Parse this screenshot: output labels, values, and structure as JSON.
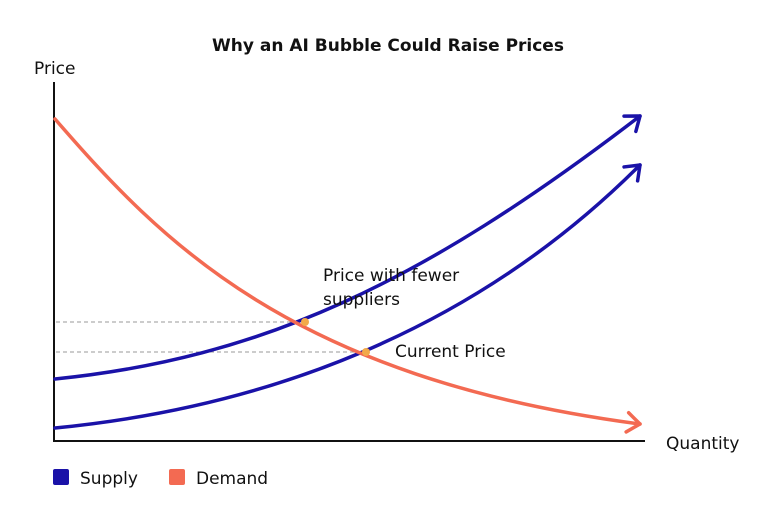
{
  "chart_data": {
    "type": "line",
    "title": "Why an AI Bubble Could Raise Prices",
    "xlabel": "Quantity",
    "ylabel": "Price",
    "grid": false,
    "legend_position": "bottom-left",
    "series": [
      {
        "name": "Supply",
        "color": "#1a12a8",
        "role": "supply-shifted"
      },
      {
        "name": "Supply",
        "color": "#1a12a8",
        "role": "supply-original"
      },
      {
        "name": "Demand",
        "color": "#f36a52",
        "role": "demand"
      }
    ],
    "legend": [
      {
        "label": "Supply",
        "color": "#1a12a8"
      },
      {
        "label": "Demand",
        "color": "#f36a52"
      }
    ],
    "annotations": [
      {
        "text_lines": [
          "Price with fewer",
          "suppliers"
        ],
        "target": "equilibrium-shifted"
      },
      {
        "text_lines": [
          "Current Price"
        ],
        "target": "equilibrium-original"
      }
    ],
    "equilibrium_color": "#f2a94a"
  }
}
